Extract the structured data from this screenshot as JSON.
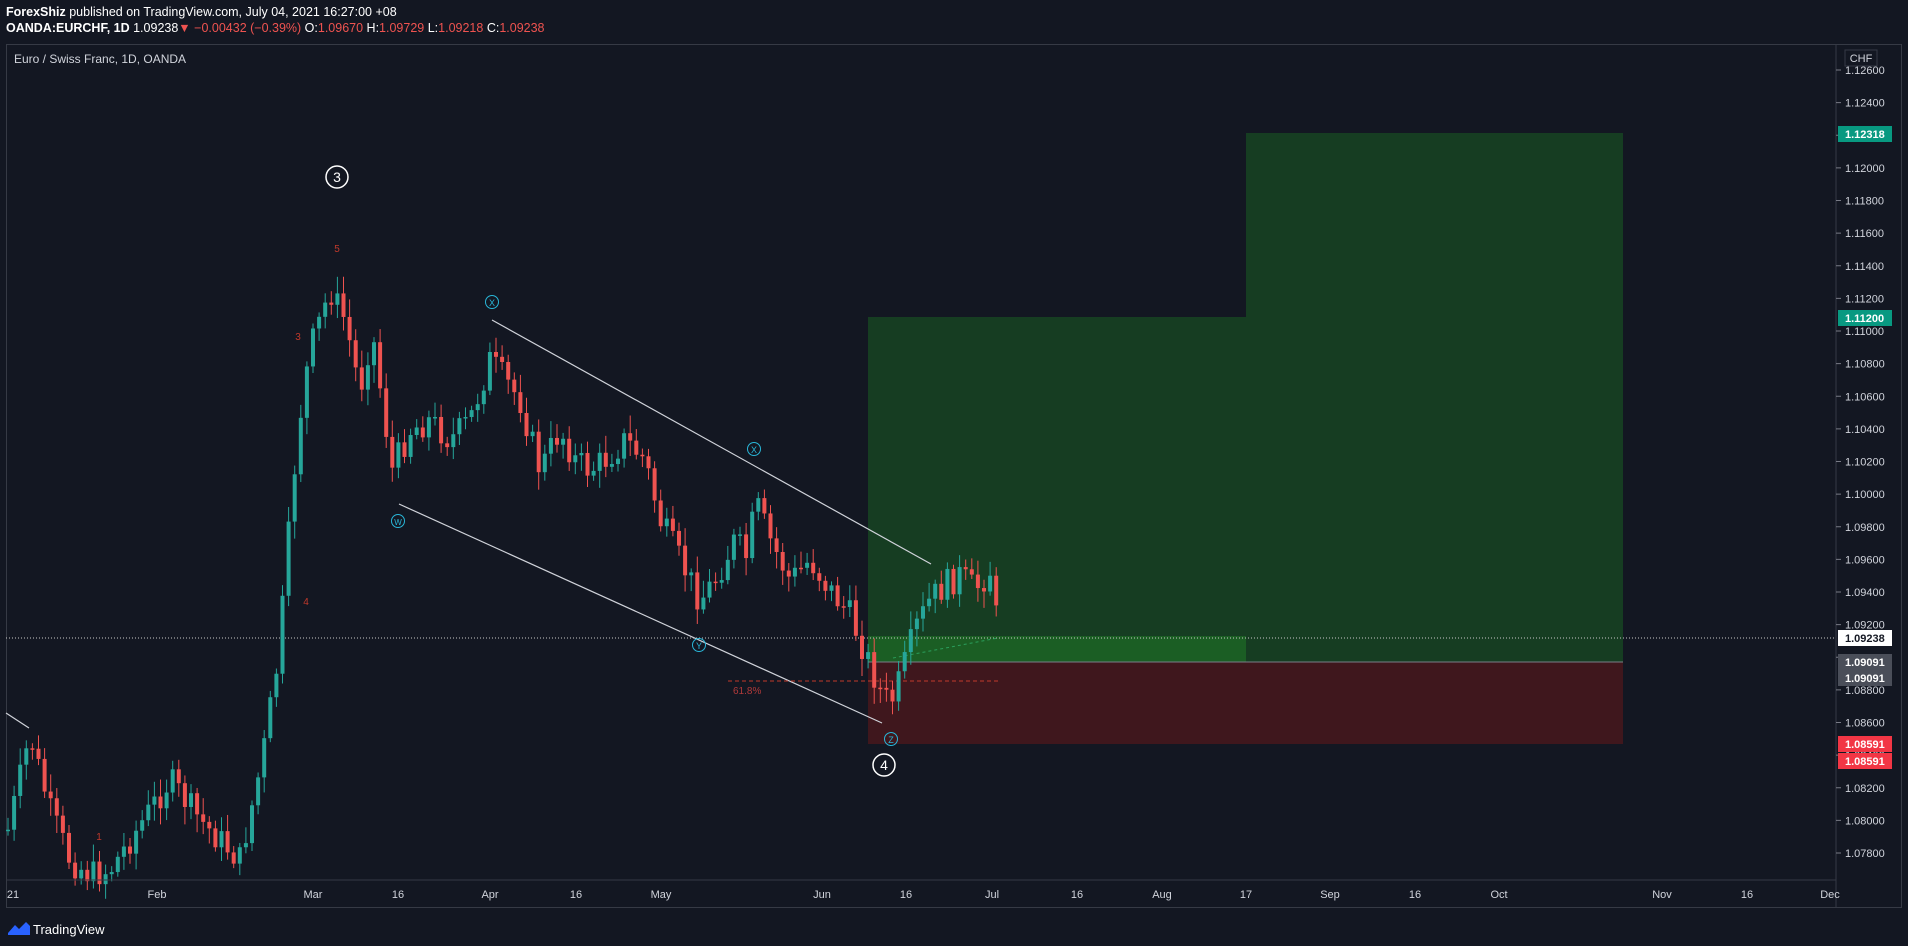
{
  "header": {
    "author": "ForexShiz",
    "published": "published on TradingView.com, July 04, 2021 16:27:00 +08",
    "symbol": "OANDA:EURCHF, 1D",
    "last": "1.09238",
    "change_arrow": "▼",
    "change": "−0.00432 (−0.39%)",
    "o_label": "O:",
    "o": "1.09670",
    "h_label": "H:",
    "h": "1.09729",
    "l_label": "L:",
    "l": "1.09218",
    "c_label": "C:",
    "c": "1.09238"
  },
  "chart": {
    "legend": "Euro / Swiss Franc, 1D, OANDA",
    "currency": "CHF",
    "price_ticks": [
      "1.12600",
      "1.12400",
      "1.12200",
      "1.12000",
      "1.11800",
      "1.11600",
      "1.11400",
      "1.11200",
      "1.11000",
      "1.10800",
      "1.10600",
      "1.10400",
      "1.10200",
      "1.10000",
      "1.09800",
      "1.09600",
      "1.09400",
      "1.09200",
      "1.09000",
      "1.08800",
      "1.08600",
      "1.08400",
      "1.08200",
      "1.08000",
      "1.07800"
    ],
    "time_ticks": [
      "21",
      "Feb",
      "Mar",
      "16",
      "Apr",
      "16",
      "May",
      "Jun",
      "16",
      "Jul",
      "16",
      "Aug",
      "17",
      "Sep",
      "16",
      "Oct",
      "Nov",
      "16",
      "Dec"
    ],
    "price_labels": [
      {
        "text": "1.12318",
        "color": "#089981"
      },
      {
        "text": "1.11200",
        "color": "#089981"
      },
      {
        "text": "1.09238",
        "color": "#ffffff"
      },
      {
        "text": "1.09091",
        "color": "#4a4e59"
      },
      {
        "text": "1.09091",
        "color": "#4a4e59"
      },
      {
        "text": "1.08591",
        "color": "#f23645"
      },
      {
        "text": "1.08591",
        "color": "#f23645"
      }
    ],
    "wave_labels": [
      "3",
      "4"
    ],
    "sub_labels": [
      "X",
      "X",
      "W",
      "Y",
      "Z"
    ],
    "red_counts": [
      "5",
      "3",
      "4",
      "1"
    ],
    "fib_label": "61.8%",
    "colors": {
      "up": "#26a69a",
      "down": "#ef5350",
      "profit_zone": "#163d22",
      "loss_zone": "#3f171d"
    }
  },
  "footer": {
    "brand": "TradingView",
    "logo_icon": "tradingview-logo-icon"
  }
}
